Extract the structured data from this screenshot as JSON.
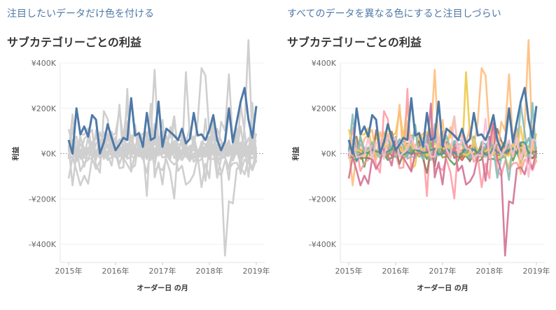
{
  "left": {
    "heading": "注目したいデータだけ色を付ける",
    "title": "サブカテゴリーごとの利益"
  },
  "right": {
    "heading": "すべてのデータを異なる色にすると注目しづらい",
    "title": "サブカテゴリーごとの利益"
  },
  "colors": {
    "highlight": "#4e79a7",
    "muted": "#cfcfcf",
    "zero_line": "#9aa3ad",
    "palette": [
      "#f28e2b",
      "#e15759",
      "#76b7b2",
      "#59a14f",
      "#edc948",
      "#b07aa1",
      "#ff9da7",
      "#9c755f",
      "#bab0ac",
      "#ffbe7d",
      "#a0a83a",
      "#86bcb6",
      "#f1ce63",
      "#d37295",
      "#499894",
      "#fabfd2"
    ]
  },
  "chart_data": [
    {
      "type": "line",
      "panel": "left",
      "title": "サブカテゴリーごとの利益",
      "xlabel": "オーダー日 の月",
      "ylabel": "利益",
      "x_ticks": [
        "2015年",
        "2016年",
        "2017年",
        "2018年",
        "2019年"
      ],
      "y_ticks": [
        "¥400K",
        "¥200K",
        "¥0K",
        "-¥200K",
        "-¥400K"
      ],
      "y_tick_values": [
        400,
        200,
        0,
        -200,
        -400
      ],
      "ylim": [
        -480,
        400
      ],
      "y_unit": "千円",
      "x_start": "2015-01",
      "grid": true,
      "highlight_series": {
        "name": "",
        "values": [
          60,
          0,
          200,
          85,
          120,
          75,
          170,
          150,
          0,
          50,
          130,
          70,
          15,
          40,
          70,
          60,
          245,
          80,
          90,
          30,
          180,
          60,
          70,
          230,
          30,
          110,
          95,
          80,
          60,
          110,
          45,
          65,
          180,
          80,
          85,
          60,
          105,
          170,
          60,
          15,
          55,
          200,
          50,
          140,
          230,
          290,
          150,
          70,
          210
        ]
      },
      "background_series_count": 16
    },
    {
      "type": "line",
      "panel": "right",
      "title": "サブカテゴリーごとの利益",
      "xlabel": "オーダー日 の月",
      "ylabel": "利益",
      "x_ticks": [
        "2015年",
        "2016年",
        "2017年",
        "2018年",
        "2019年"
      ],
      "y_ticks": [
        "¥400K",
        "¥200K",
        "¥0K",
        "-¥200K",
        "-¥400K"
      ],
      "y_tick_values": [
        400,
        200,
        0,
        -200,
        -400
      ],
      "ylim": [
        -480,
        400
      ],
      "x_start": "2015-01",
      "grid": true,
      "series_count": 17
    }
  ]
}
